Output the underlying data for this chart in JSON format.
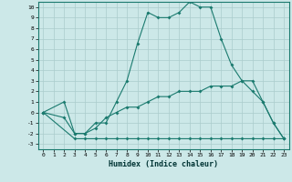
{
  "xlabel": "Humidex (Indice chaleur)",
  "bg_color": "#cce8e8",
  "grid_color": "#aacccc",
  "line_color": "#1a7a6e",
  "xlim": [
    -0.5,
    23.5
  ],
  "ylim": [
    -3.5,
    10.5
  ],
  "yticks": [
    -3,
    -2,
    -1,
    0,
    1,
    2,
    3,
    4,
    5,
    6,
    7,
    8,
    9,
    10
  ],
  "xticks": [
    0,
    1,
    2,
    3,
    4,
    5,
    6,
    7,
    8,
    9,
    10,
    11,
    12,
    13,
    14,
    15,
    16,
    17,
    18,
    19,
    20,
    21,
    22,
    23
  ],
  "line1_x": [
    0,
    2,
    3,
    4,
    5,
    6,
    7,
    8,
    9,
    10,
    11,
    12,
    13,
    14,
    15,
    16,
    17,
    18,
    19,
    20,
    21,
    22,
    23
  ],
  "line1_y": [
    0,
    1,
    -2,
    -2,
    -1,
    -1,
    1,
    3,
    6.5,
    9.5,
    9,
    9,
    9.5,
    10.5,
    10,
    10,
    7,
    4.5,
    3,
    3,
    1,
    -1,
    -2.5
  ],
  "line2_x": [
    0,
    2,
    3,
    4,
    5,
    6,
    7,
    8,
    9,
    10,
    11,
    12,
    13,
    14,
    15,
    16,
    17,
    18,
    19,
    20,
    21,
    22,
    23
  ],
  "line2_y": [
    0,
    -0.5,
    -2,
    -2,
    -1.5,
    -0.5,
    0,
    0.5,
    0.5,
    1,
    1.5,
    1.5,
    2,
    2,
    2,
    2.5,
    2.5,
    2.5,
    3,
    2,
    1,
    -1,
    -2.5
  ],
  "line3_x": [
    0,
    3,
    4,
    5,
    6,
    7,
    8,
    9,
    10,
    11,
    12,
    13,
    14,
    15,
    16,
    17,
    18,
    19,
    20,
    21,
    22,
    23
  ],
  "line3_y": [
    0,
    -2.5,
    -2.5,
    -2.5,
    -2.5,
    -2.5,
    -2.5,
    -2.5,
    -2.5,
    -2.5,
    -2.5,
    -2.5,
    -2.5,
    -2.5,
    -2.5,
    -2.5,
    -2.5,
    -2.5,
    -2.5,
    -2.5,
    -2.5,
    -2.5
  ]
}
